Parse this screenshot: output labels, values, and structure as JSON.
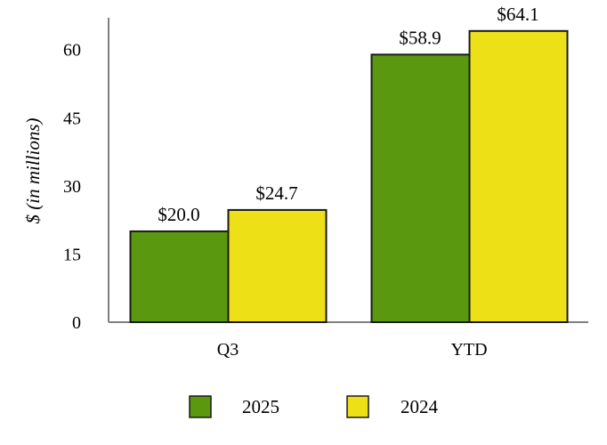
{
  "chart_data": {
    "type": "bar",
    "categories": [
      "Q3",
      "YTD"
    ],
    "series": [
      {
        "name": "2025",
        "values": [
          20.0,
          58.9
        ],
        "labels": [
          "$20.0",
          "$58.9"
        ],
        "color": "#5a980f"
      },
      {
        "name": "2024",
        "values": [
          24.7,
          64.1
        ],
        "labels": [
          "$24.7",
          "$64.1"
        ],
        "color": "#ede017"
      }
    ],
    "title": "",
    "xlabel": "",
    "ylabel": "$ (in millions)",
    "ylim": [
      0,
      67
    ],
    "yticks": [
      0,
      15,
      30,
      45,
      60
    ],
    "grid": false,
    "legend": "bottom-center",
    "bar_stroke": "#1a1a1a",
    "axis_color": "#808080"
  }
}
